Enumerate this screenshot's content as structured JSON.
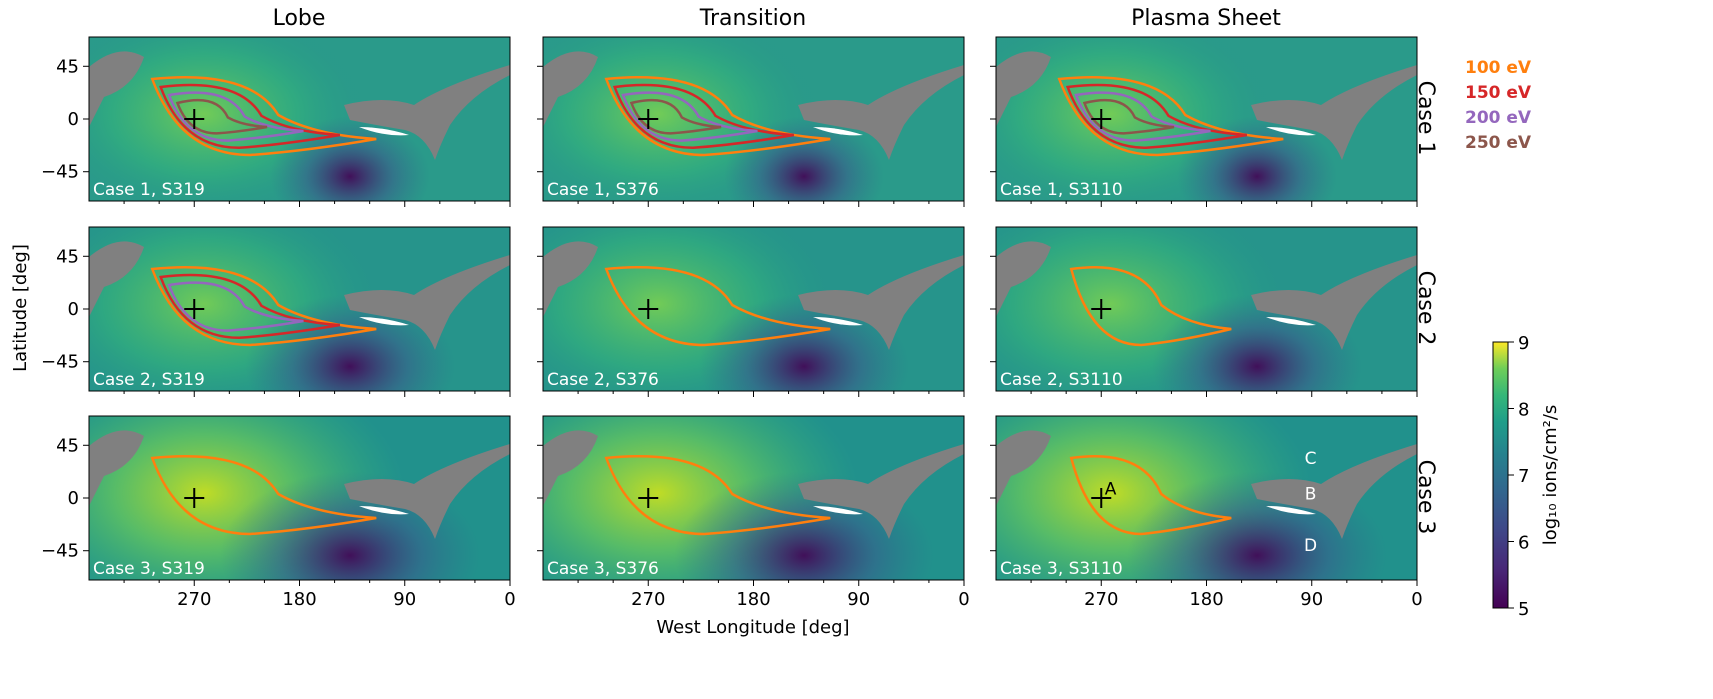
{
  "chart_data": {
    "type": "heatmap",
    "column_titles": [
      "Lobe",
      "Transition",
      "Plasma Sheet"
    ],
    "row_labels": [
      "Case 1",
      "Case 2",
      "Case 3"
    ],
    "xlabel": "West Longitude [deg]",
    "ylabel": "Latitude [deg]",
    "x_ticks": [
      "270",
      "180",
      "90",
      "0"
    ],
    "y_ticks": [
      "45",
      "0",
      "−45"
    ],
    "xlim": [
      360,
      0
    ],
    "ylim": [
      -70,
      70
    ],
    "crosshair": {
      "lon": 270,
      "lat": 0
    },
    "panels": [
      [
        "Case 1, S319",
        "Case 1, S376",
        "Case 1, S3110"
      ],
      [
        "Case 2, S319",
        "Case 2, S376",
        "Case 2, S3110"
      ],
      [
        "Case 3, S319",
        "Case 3, S376",
        "Case 3, S3110"
      ]
    ],
    "contour_levels": [
      {
        "label": "100 eV",
        "color": "#ff7f0e"
      },
      {
        "label": "150 eV",
        "color": "#d62728"
      },
      {
        "label": "200 eV",
        "color": "#9467bd"
      },
      {
        "label": "250 eV",
        "color": "#8c564b"
      }
    ],
    "colorbar": {
      "label": "log₁₀ ions/cm²/s",
      "min": 5,
      "max": 9,
      "ticks": [
        "5",
        "6",
        "7",
        "8",
        "9"
      ],
      "colormap": "viridis"
    },
    "annotations": [
      {
        "text": "A",
        "lon": 262,
        "lat": 8
      },
      {
        "text": "B",
        "lon": 91,
        "lat": 4
      },
      {
        "text": "C",
        "lon": 91,
        "lat": 34
      },
      {
        "text": "D",
        "lon": 91,
        "lat": -40
      }
    ]
  }
}
